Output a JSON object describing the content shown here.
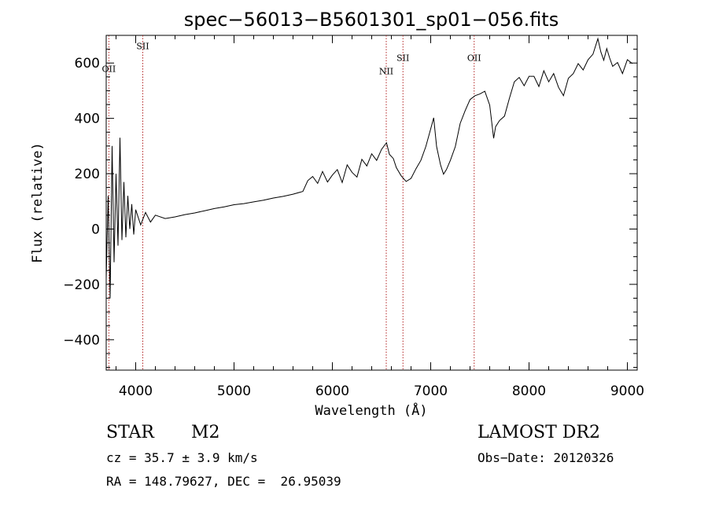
{
  "chart_data": {
    "type": "line",
    "title": "spec−56013−B5601301_sp01−056.fits",
    "xlabel": "Wavelength (Å)",
    "ylabel": "Flux (relative)",
    "xlim": [
      3700,
      9100
    ],
    "ylim": [
      -510,
      700
    ],
    "xticks": [
      4000,
      5000,
      6000,
      7000,
      8000,
      9000
    ],
    "yticks": [
      -400,
      -200,
      0,
      200,
      400,
      600
    ],
    "ytick_labels": [
      "−400",
      "−200",
      "0",
      "200",
      "400",
      "600"
    ],
    "grid": false,
    "series": [
      {
        "x": [
          3700,
          3720,
          3740,
          3760,
          3780,
          3800,
          3820,
          3840,
          3860,
          3880,
          3900,
          3920,
          3940,
          3960,
          3980,
          4000,
          4050,
          4100,
          4150,
          4200,
          4300,
          4400,
          4500,
          4600,
          4700,
          4800,
          4900,
          5000,
          5100,
          5200,
          5300,
          5400,
          5500,
          5600,
          5700,
          5750,
          5800,
          5850,
          5900,
          5950,
          6000,
          6050,
          6100,
          6150,
          6200,
          6250,
          6300,
          6350,
          6400,
          6450,
          6500,
          6550,
          6580,
          6620,
          6650,
          6700,
          6750,
          6800,
          6850,
          6900,
          6950,
          7000,
          7030,
          7060,
          7100,
          7130,
          7160,
          7200,
          7250,
          7300,
          7350,
          7400,
          7450,
          7500,
          7550,
          7600,
          7640,
          7660,
          7700,
          7750,
          7800,
          7850,
          7900,
          7950,
          8000,
          8050,
          8100,
          8150,
          8200,
          8250,
          8300,
          8350,
          8400,
          8450,
          8500,
          8550,
          8600,
          8650,
          8700,
          8730,
          8760,
          8790,
          8820,
          8850,
          8900,
          8950,
          9000,
          9050
        ],
        "y": [
          -180,
          120,
          -250,
          300,
          -120,
          200,
          -60,
          330,
          -40,
          170,
          -30,
          120,
          0,
          90,
          -20,
          70,
          15,
          60,
          25,
          50,
          38,
          44,
          52,
          58,
          66,
          74,
          80,
          88,
          92,
          98,
          104,
          112,
          118,
          126,
          136,
          175,
          190,
          165,
          208,
          170,
          195,
          215,
          168,
          232,
          205,
          188,
          252,
          228,
          272,
          248,
          288,
          312,
          270,
          255,
          222,
          192,
          172,
          183,
          218,
          248,
          298,
          362,
          402,
          298,
          232,
          198,
          215,
          248,
          298,
          382,
          428,
          468,
          482,
          488,
          498,
          448,
          328,
          370,
          392,
          408,
          472,
          532,
          548,
          518,
          552,
          552,
          515,
          572,
          532,
          562,
          512,
          482,
          545,
          562,
          598,
          575,
          612,
          632,
          688,
          640,
          610,
          652,
          618,
          588,
          602,
          562,
          612,
          598
        ]
      }
    ],
    "annotations": [
      {
        "label": "OII",
        "x": 3727,
        "y": 568
      },
      {
        "label": "SII",
        "x": 4072,
        "y": 650
      },
      {
        "label": "NII",
        "x": 6548,
        "y": 560
      },
      {
        "label": "SII",
        "x": 6718,
        "y": 608
      },
      {
        "label": "OII",
        "x": 7442,
        "y": 608
      }
    ],
    "reference_lines": [
      3727,
      4072,
      6548,
      6718,
      7442
    ]
  },
  "info": {
    "object_type": "STAR",
    "subclass": "M2",
    "survey": "LAMOST DR2",
    "cz": "cz = 35.7 ± 3.9 km/s",
    "obs_date": "Obs−Date: 20120326",
    "coords": "RA = 148.79627, DEC =  26.95039"
  }
}
